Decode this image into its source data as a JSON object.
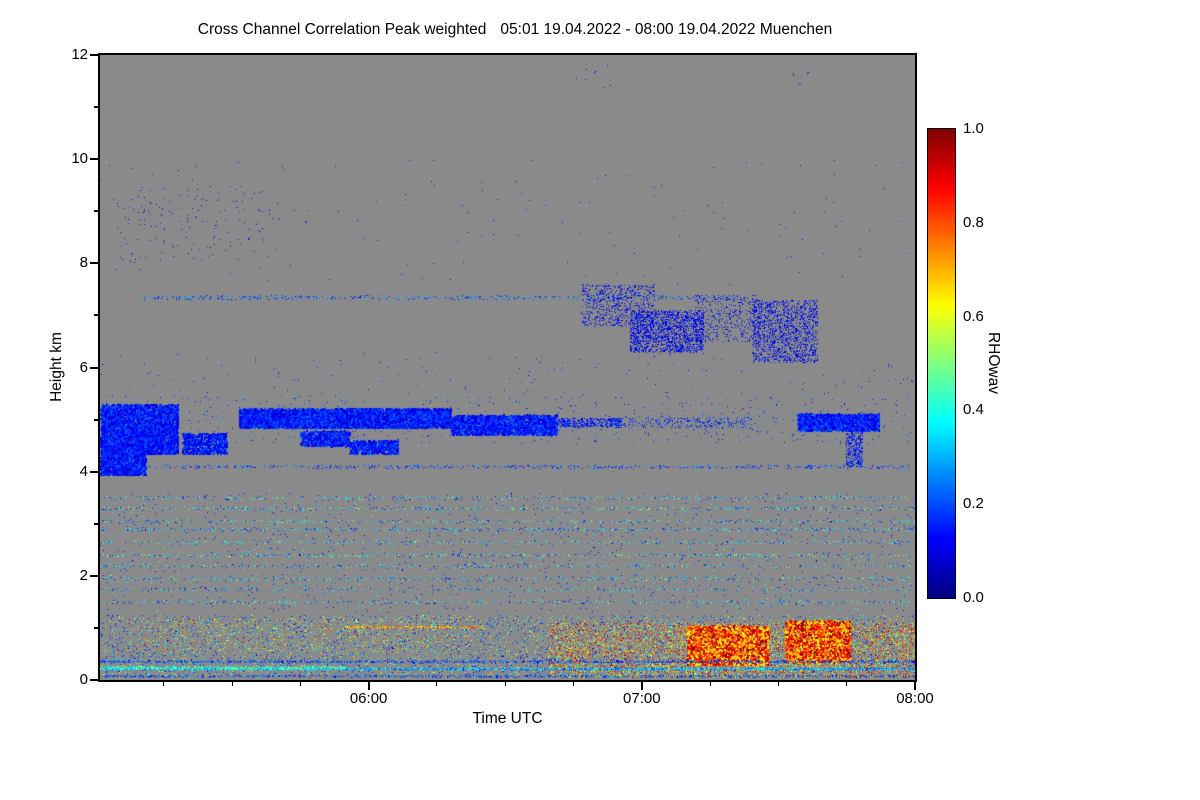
{
  "chart_data": {
    "type": "heatmap",
    "title": "Cross Channel Correlation Peak weighted",
    "period": "05:01 19.04.2022 - 08:00 19.04.2022 Muenchen",
    "xlabel": "Time UTC",
    "ylabel": "Height km",
    "x_start": "05:01",
    "x_end": "08:00",
    "x_ticks": [
      "06:00",
      "07:00",
      "08:00"
    ],
    "x_minor_tick_minutes": 15,
    "y_min": 0,
    "y_max": 12,
    "y_ticks": [
      0,
      2,
      4,
      6,
      8,
      10,
      12
    ],
    "y_minor_ticks": [
      1,
      3,
      5,
      7,
      9,
      11
    ],
    "no_data_color": "#8a8a8a",
    "axis_color": "#000000",
    "colormap": "jet",
    "seed": 42,
    "colorbar": {
      "label": "RHOwav",
      "min": 0.0,
      "max": 1.0,
      "ticks": [
        "1.0",
        "0.8",
        "0.6",
        "0.4",
        "0.2",
        "0.0"
      ]
    },
    "features": [
      {
        "region": "high-altitude-specks-left",
        "t0": 0.02,
        "t1": 0.22,
        "h0": 8.0,
        "h1": 9.5,
        "n": 150,
        "vmin": 0.05,
        "vmax": 0.2,
        "size": 1
      },
      {
        "region": "high-altitude-specks-scattered",
        "t0": 0.0,
        "t1": 1.0,
        "h0": 7.6,
        "h1": 10.0,
        "n": 130,
        "vmin": 0.05,
        "vmax": 0.2,
        "size": 1
      },
      {
        "region": "isolated-specks-11km-a",
        "t0": 0.57,
        "t1": 0.63,
        "h0": 11.3,
        "h1": 11.9,
        "n": 8,
        "vmin": 0.05,
        "vmax": 0.15,
        "size": 1
      },
      {
        "region": "isolated-specks-11km-b",
        "t0": 0.83,
        "t1": 0.87,
        "h0": 11.3,
        "h1": 11.7,
        "n": 6,
        "vmin": 0.05,
        "vmax": 0.15,
        "size": 1
      },
      {
        "type": "hline",
        "region": "dotted-line-7km",
        "t0": 0.05,
        "t1": 0.78,
        "h": 7.35,
        "jitter": 0.04,
        "n": 550,
        "vmin": 0.08,
        "vmax": 0.35,
        "size": 1
      },
      {
        "region": "cirrus-fragments-a",
        "t0": 0.59,
        "t1": 0.68,
        "h0": 6.8,
        "h1": 7.6,
        "n": 700,
        "vmin": 0.06,
        "vmax": 0.18,
        "size": 1
      },
      {
        "region": "cirrus-fragments-b",
        "t0": 0.65,
        "t1": 0.74,
        "h0": 6.3,
        "h1": 7.1,
        "n": 1800,
        "vmin": 0.06,
        "vmax": 0.18,
        "size": 1
      },
      {
        "region": "cirrus-fragments-c",
        "t0": 0.73,
        "t1": 0.81,
        "h0": 6.5,
        "h1": 7.4,
        "n": 450,
        "vmin": 0.06,
        "vmax": 0.18,
        "size": 1
      },
      {
        "region": "cirrus-fragments-d",
        "t0": 0.8,
        "t1": 0.88,
        "h0": 6.1,
        "h1": 7.3,
        "n": 1500,
        "vmin": 0.06,
        "vmax": 0.18,
        "size": 1
      },
      {
        "region": "mid-level-sparse",
        "t0": 0.0,
        "t1": 1.0,
        "h0": 5.35,
        "h1": 6.3,
        "n": 160,
        "vmin": 0.06,
        "vmax": 0.25,
        "size": 1
      },
      {
        "region": "aerosol-blob-left-upper",
        "t0": 0.0,
        "t1": 0.095,
        "h0": 4.35,
        "h1": 5.3,
        "n": 3800,
        "vmin": 0.07,
        "vmax": 0.22,
        "size": 2
      },
      {
        "region": "aerosol-blob-left-lower",
        "t0": 0.0,
        "t1": 0.055,
        "h0": 3.95,
        "h1": 4.55,
        "n": 1700,
        "vmin": 0.07,
        "vmax": 0.22,
        "size": 2
      },
      {
        "region": "aerosol-blob-small-1",
        "t0": 0.1,
        "t1": 0.155,
        "h0": 4.35,
        "h1": 4.75,
        "n": 600,
        "vmin": 0.07,
        "vmax": 0.22,
        "size": 2
      },
      {
        "region": "aerosol-band-main",
        "t0": 0.17,
        "t1": 0.43,
        "h0": 4.85,
        "h1": 5.22,
        "n": 5200,
        "vmin": 0.07,
        "vmax": 0.22,
        "size": 2
      },
      {
        "region": "aerosol-blob-small-2",
        "t0": 0.245,
        "t1": 0.305,
        "h0": 4.5,
        "h1": 4.8,
        "n": 550,
        "vmin": 0.07,
        "vmax": 0.22,
        "size": 2
      },
      {
        "region": "aerosol-blob-small-3",
        "t0": 0.305,
        "t1": 0.365,
        "h0": 4.35,
        "h1": 4.62,
        "n": 420,
        "vmin": 0.07,
        "vmax": 0.22,
        "size": 2
      },
      {
        "region": "aerosol-band-mid",
        "t0": 0.43,
        "t1": 0.56,
        "h0": 4.72,
        "h1": 5.1,
        "n": 1900,
        "vmin": 0.07,
        "vmax": 0.22,
        "size": 2
      },
      {
        "region": "aerosol-band-thin",
        "t0": 0.56,
        "t1": 0.64,
        "h0": 4.86,
        "h1": 5.04,
        "n": 500,
        "vmin": 0.07,
        "vmax": 0.22,
        "size": 1
      },
      {
        "region": "aerosol-dots-mid",
        "t0": 0.64,
        "t1": 0.8,
        "h0": 4.85,
        "h1": 5.05,
        "n": 280,
        "vmin": 0.07,
        "vmax": 0.25,
        "size": 1
      },
      {
        "region": "aerosol-band-right",
        "t0": 0.855,
        "t1": 0.955,
        "h0": 4.8,
        "h1": 5.12,
        "n": 1600,
        "vmin": 0.07,
        "vmax": 0.22,
        "size": 2
      },
      {
        "region": "fall-streak-right",
        "t0": 0.915,
        "t1": 0.935,
        "h0": 4.1,
        "h1": 4.85,
        "n": 380,
        "vmin": 0.07,
        "vmax": 0.22,
        "size": 1
      },
      {
        "region": "band-speckle-halo",
        "t0": 0.0,
        "t1": 1.0,
        "h0": 4.55,
        "h1": 5.45,
        "n": 700,
        "vmin": 0.07,
        "vmax": 0.3,
        "size": 1
      },
      {
        "type": "hline",
        "region": "dotted-line-4km",
        "t0": 0.05,
        "t1": 1.0,
        "h": 4.1,
        "jitter": 0.03,
        "n": 650,
        "vmin": 0.08,
        "vmax": 0.3,
        "size": 1
      },
      {
        "type": "hline",
        "region": "streak-3.5km",
        "t0": 0.0,
        "t1": 1.0,
        "h": 3.5,
        "jitter": 0.03,
        "n": 420,
        "vmin": 0.1,
        "vmax": 0.55,
        "size": 1
      },
      {
        "type": "hline",
        "region": "streak-3.3km",
        "t0": 0.0,
        "t1": 1.0,
        "h": 3.3,
        "jitter": 0.03,
        "n": 500,
        "vmin": 0.1,
        "vmax": 0.6,
        "size": 1
      },
      {
        "type": "hline",
        "region": "streak-3.05km",
        "t0": 0.0,
        "t1": 1.0,
        "h": 3.05,
        "jitter": 0.03,
        "n": 420,
        "vmin": 0.1,
        "vmax": 0.55,
        "size": 1
      },
      {
        "type": "hline",
        "region": "streak-2.9km",
        "t0": 0.0,
        "t1": 1.0,
        "h": 2.9,
        "jitter": 0.03,
        "n": 550,
        "vmin": 0.08,
        "vmax": 0.5,
        "size": 1
      },
      {
        "type": "hline",
        "region": "streak-2.65km",
        "t0": 0.0,
        "t1": 1.0,
        "h": 2.65,
        "jitter": 0.03,
        "n": 380,
        "vmin": 0.1,
        "vmax": 0.55,
        "size": 1
      },
      {
        "type": "hline",
        "region": "streak-2.4km",
        "t0": 0.0,
        "t1": 1.0,
        "h": 2.4,
        "jitter": 0.03,
        "n": 520,
        "vmin": 0.1,
        "vmax": 0.6,
        "size": 1
      },
      {
        "type": "hline",
        "region": "streak-2.2km",
        "t0": 0.0,
        "t1": 1.0,
        "h": 2.2,
        "jitter": 0.03,
        "n": 400,
        "vmin": 0.1,
        "vmax": 0.55,
        "size": 1
      },
      {
        "type": "hline",
        "region": "streak-1.95km",
        "t0": 0.0,
        "t1": 1.0,
        "h": 1.95,
        "jitter": 0.03,
        "n": 450,
        "vmin": 0.1,
        "vmax": 0.55,
        "size": 1
      },
      {
        "type": "hline",
        "region": "streak-1.75km",
        "t0": 0.0,
        "t1": 1.0,
        "h": 1.75,
        "jitter": 0.03,
        "n": 350,
        "vmin": 0.1,
        "vmax": 0.5,
        "size": 1
      },
      {
        "type": "hline",
        "region": "streak-1.5km",
        "t0": 0.0,
        "t1": 1.0,
        "h": 1.5,
        "jitter": 0.03,
        "n": 450,
        "vmin": 0.1,
        "vmax": 0.55,
        "size": 1
      },
      {
        "region": "mid-low-speckle",
        "t0": 0.0,
        "t1": 1.0,
        "h0": 1.3,
        "h1": 3.6,
        "n": 1600,
        "vmin": 0.08,
        "vmax": 0.5,
        "pow": 1.6,
        "size": 1
      },
      {
        "region": "bottom-speckle-base",
        "t0": 0.0,
        "t1": 1.0,
        "h0": 0.05,
        "h1": 1.25,
        "n": 5500,
        "vmin": 0.1,
        "vmax": 0.7,
        "pow": 1.6,
        "size": 1
      },
      {
        "region": "bottom-warm-left",
        "t0": 0.05,
        "t1": 0.45,
        "h0": 0.55,
        "h1": 1.2,
        "n": 700,
        "vmin": 0.4,
        "vmax": 0.85,
        "size": 1
      },
      {
        "region": "bottom-warm-right",
        "t0": 0.55,
        "t1": 1.0,
        "h0": 0.05,
        "h1": 1.1,
        "n": 5200,
        "vmin": 0.45,
        "vmax": 1.0,
        "size": 1
      },
      {
        "region": "red-cluster-a",
        "t0": 0.72,
        "t1": 0.82,
        "h0": 0.3,
        "h1": 1.05,
        "n": 2600,
        "vmin": 0.6,
        "vmax": 1.0,
        "size": 2
      },
      {
        "region": "red-cluster-b",
        "t0": 0.84,
        "t1": 0.92,
        "h0": 0.35,
        "h1": 1.15,
        "n": 2200,
        "vmin": 0.6,
        "vmax": 1.0,
        "size": 2
      },
      {
        "type": "hline",
        "region": "orange-streak-1km",
        "t0": 0.3,
        "t1": 0.47,
        "h": 1.02,
        "jitter": 0.02,
        "n": 260,
        "vmin": 0.55,
        "vmax": 0.85,
        "size": 1
      },
      {
        "type": "hline",
        "region": "surface-line-0.35km",
        "t0": 0.0,
        "t1": 1.0,
        "h": 0.36,
        "jitter": 0.02,
        "n": 1300,
        "vmin": 0.1,
        "vmax": 0.3,
        "size": 1
      },
      {
        "type": "hline",
        "region": "surface-line-0.22km",
        "t0": 0.0,
        "t1": 1.0,
        "h": 0.22,
        "jitter": 0.02,
        "n": 2600,
        "vmin": 0.15,
        "vmax": 0.45,
        "size": 1
      },
      {
        "type": "hline",
        "region": "surface-line-cyan-left",
        "t0": 0.0,
        "t1": 0.3,
        "h": 0.24,
        "jitter": 0.03,
        "n": 900,
        "vmin": 0.3,
        "vmax": 0.55,
        "size": 1
      },
      {
        "type": "hline",
        "region": "surface-line-0.08km",
        "t0": 0.0,
        "t1": 1.0,
        "h": 0.08,
        "jitter": 0.02,
        "n": 900,
        "vmin": 0.1,
        "vmax": 0.3,
        "size": 1
      }
    ]
  }
}
